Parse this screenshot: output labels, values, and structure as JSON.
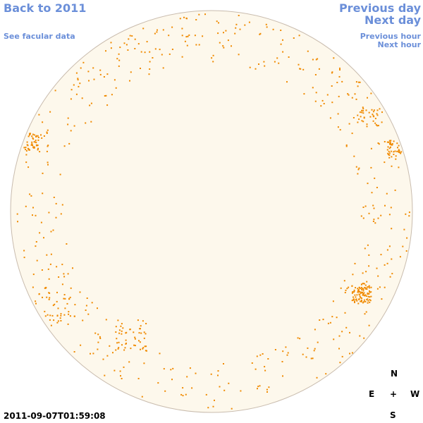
{
  "links": {
    "back": "Back to 2011",
    "facular": "See facular data",
    "previous_day": "Previous day",
    "next_day": "Next day",
    "previous_hour": "Previous hour",
    "next_hour": "Next hour"
  },
  "timestamp": "2011-09-07T01:59:08",
  "compass": {
    "north": "N",
    "east": "E",
    "center": "+",
    "west": "W",
    "south": "S"
  }
}
